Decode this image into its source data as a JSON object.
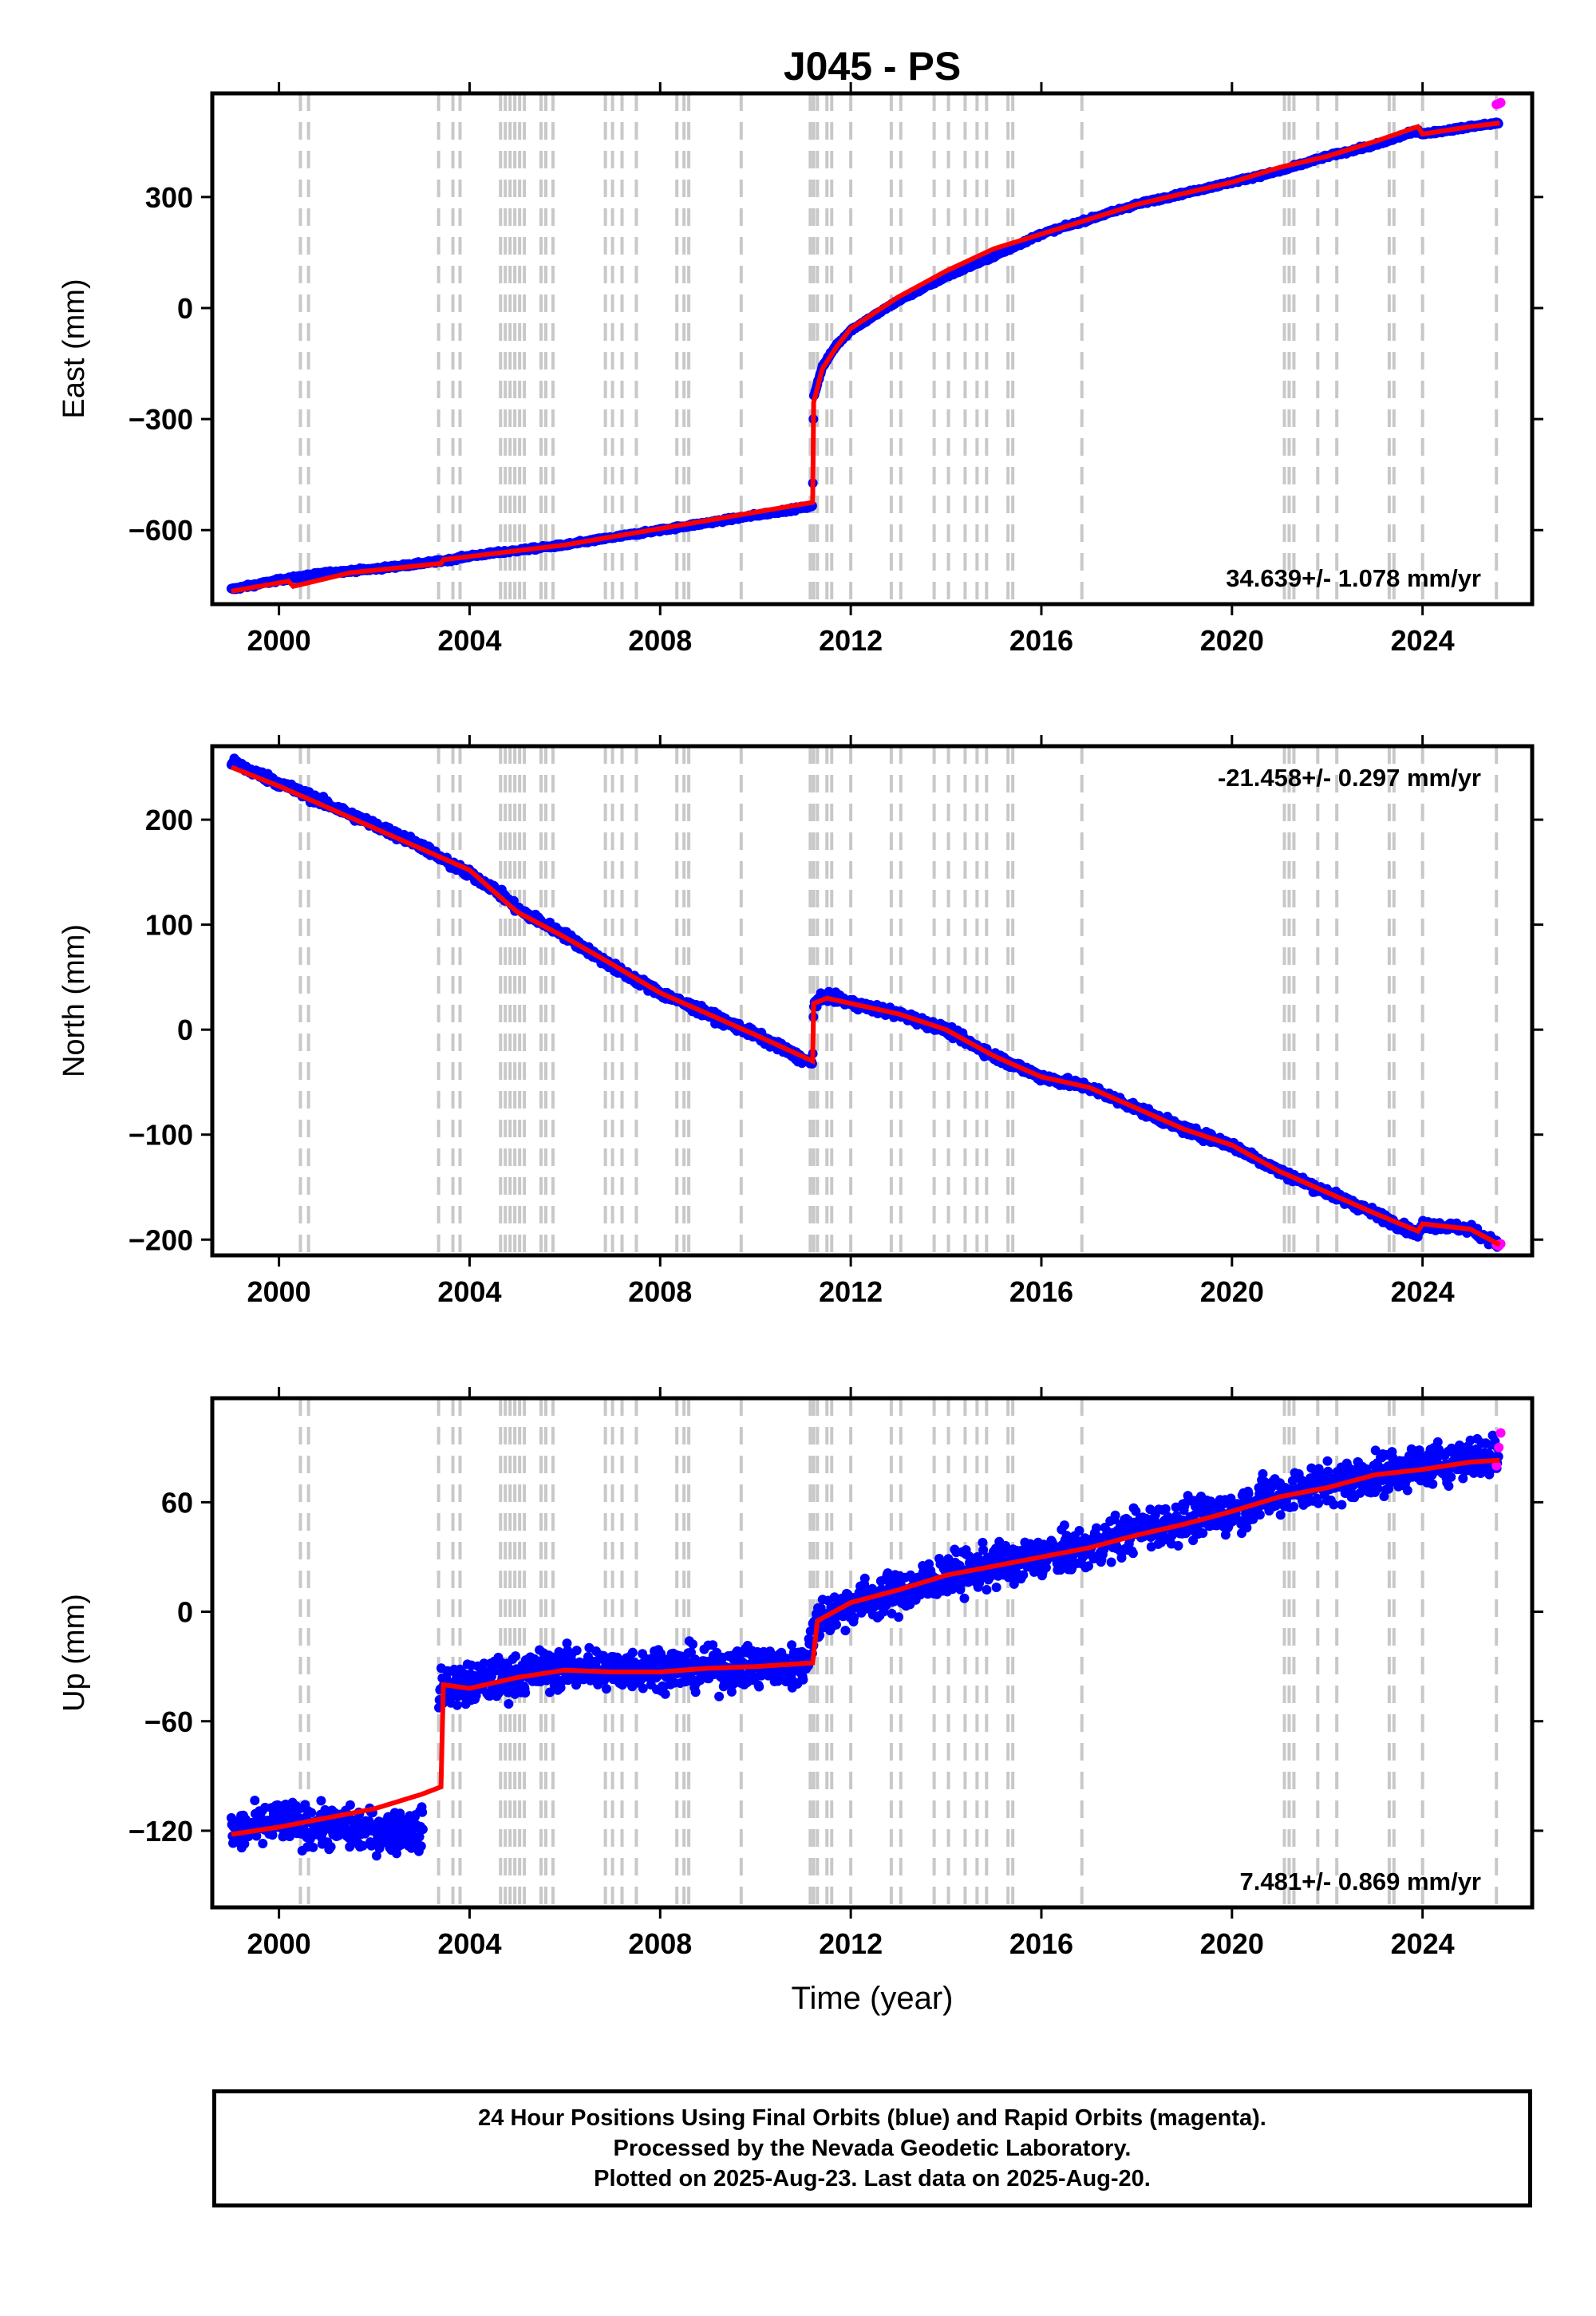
{
  "title": "J045 - PS",
  "xlabel": "Time (year)",
  "footer": {
    "line1": "24 Hour Positions Using Final Orbits (blue) and Rapid Orbits (magenta).",
    "line2": "Processed by the Nevada Geodetic Laboratory.",
    "line3": "Plotted on 2025-Aug-23. Last data on 2025-Aug-20."
  },
  "colors": {
    "final": "#0000ff",
    "rapid": "#ff00ff",
    "model": "#ff0000",
    "events": "#c8c8c8"
  },
  "chart_data": [
    {
      "type": "scatter",
      "component": "East",
      "ylabel": "East (mm)",
      "xlim": [
        1998.6,
        2026.3
      ],
      "ylim": [
        -800,
        580
      ],
      "xticks": [
        2000,
        2004,
        2008,
        2012,
        2016,
        2020,
        2024
      ],
      "yticks": [
        -600,
        -300,
        0,
        300
      ],
      "ytick_labels": [
        "−600",
        "−300",
        "0",
        "300"
      ],
      "rate_label": "34.639+/- 1.078 mm/yr",
      "rate_position": "bottom-right",
      "series": [
        {
          "name": "Final Orbits",
          "color": "#0000ff",
          "x": [
            1999.0,
            2000.0,
            2001.0,
            2002.0,
            2003.0,
            2003.5,
            2004.0,
            2005.0,
            2006.0,
            2007.0,
            2008.0,
            2009.0,
            2010.0,
            2011.2,
            2011.22,
            2011.4,
            2011.7,
            2012.0,
            2013.0,
            2014.0,
            2015.0,
            2016.0,
            2017.0,
            2018.0,
            2019.0,
            2020.0,
            2021.0,
            2022.0,
            2023.0,
            2023.9,
            2024.0,
            2025.0,
            2025.6
          ],
          "y": [
            -760,
            -735,
            -715,
            -705,
            -690,
            -682,
            -670,
            -655,
            -640,
            -620,
            -600,
            -580,
            -560,
            -535,
            -240,
            -160,
            -100,
            -60,
            20,
            85,
            140,
            200,
            240,
            280,
            310,
            340,
            370,
            410,
            440,
            480,
            470,
            490,
            500
          ]
        },
        {
          "name": "Rapid Orbits",
          "color": "#ff00ff",
          "x": [
            2025.55,
            2025.6,
            2025.64
          ],
          "y": [
            550,
            552,
            555
          ]
        }
      ],
      "model": {
        "color": "#ff0000",
        "x": [
          1999.0,
          2000.2,
          2000.3,
          2001.5,
          2003.4,
          2003.45,
          2006.0,
          2011.2,
          2011.22,
          2011.4,
          2011.7,
          2012.0,
          2013.0,
          2014.0,
          2015.0,
          2016.0,
          2017.0,
          2018.0,
          2019.0,
          2020.0,
          2021.0,
          2022.0,
          2023.0,
          2023.9,
          2024.0,
          2025.0,
          2025.62
        ],
        "y": [
          -765,
          -738,
          -752,
          -715,
          -690,
          -680,
          -640,
          -525,
          -255,
          -165,
          -105,
          -55,
          30,
          100,
          160,
          200,
          240,
          280,
          310,
          340,
          380,
          410,
          450,
          490,
          470,
          490,
          500
        ]
      },
      "events": [
        2000.45,
        2000.62,
        2003.35,
        2003.65,
        2003.8,
        2004.65,
        2004.75,
        2004.85,
        2004.95,
        2005.05,
        2005.15,
        2005.5,
        2005.6,
        2005.75,
        2006.85,
        2007.0,
        2007.2,
        2007.5,
        2008.35,
        2008.5,
        2008.6,
        2009.7,
        2011.15,
        2011.22,
        2011.3,
        2011.5,
        2011.6,
        2012.0,
        2012.85,
        2013.05,
        2013.75,
        2014.05,
        2014.4,
        2014.65,
        2014.85,
        2015.3,
        2015.4,
        2016.85,
        2021.1,
        2021.2,
        2021.3,
        2021.8,
        2022.2,
        2023.3,
        2023.4,
        2024.0,
        2025.55
      ]
    },
    {
      "type": "scatter",
      "component": "North",
      "ylabel": "North (mm)",
      "xlim": [
        1998.6,
        2026.3
      ],
      "ylim": [
        -215,
        270
      ],
      "xticks": [
        2000,
        2004,
        2008,
        2012,
        2016,
        2020,
        2024
      ],
      "yticks": [
        -200,
        -100,
        0,
        100,
        200
      ],
      "ytick_labels": [
        "−200",
        "−100",
        "0",
        "100",
        "200"
      ],
      "rate_label": "-21.458+/- 0.297 mm/yr",
      "rate_position": "top-right",
      "series": [
        {
          "name": "Final Orbits",
          "color": "#0000ff",
          "x": [
            1999.0,
            2000.0,
            2001.0,
            2002.0,
            2003.0,
            2003.5,
            2004.0,
            2004.5,
            2005.0,
            2006.0,
            2007.0,
            2008.0,
            2009.0,
            2010.0,
            2011.2,
            2011.22,
            2011.5,
            2012.0,
            2013.0,
            2014.0,
            2015.0,
            2016.0,
            2017.0,
            2018.0,
            2019.0,
            2020.0,
            2021.0,
            2022.0,
            2023.0,
            2023.9,
            2024.0,
            2025.0,
            2025.6
          ],
          "y": [
            255,
            235,
            215,
            195,
            175,
            160,
            148,
            135,
            115,
            90,
            60,
            35,
            15,
            -5,
            -33,
            25,
            32,
            25,
            15,
            0,
            -25,
            -45,
            -55,
            -75,
            -95,
            -110,
            -135,
            -155,
            -175,
            -195,
            -185,
            -190,
            -205
          ]
        },
        {
          "name": "Rapid Orbits",
          "color": "#ff00ff",
          "x": [
            2025.55,
            2025.6,
            2025.64
          ],
          "y": [
            -205,
            -206,
            -204
          ]
        }
      ],
      "model": {
        "color": "#ff0000",
        "x": [
          1999.0,
          2000.0,
          2001.0,
          2002.0,
          2003.0,
          2004.0,
          2005.0,
          2006.0,
          2007.0,
          2008.0,
          2009.0,
          2010.0,
          2011.2,
          2011.22,
          2011.5,
          2012.0,
          2013.0,
          2014.0,
          2015.0,
          2016.0,
          2017.0,
          2018.0,
          2019.0,
          2020.0,
          2021.0,
          2022.0,
          2023.0,
          2023.9,
          2024.0,
          2025.0,
          2025.62
        ],
        "y": [
          250,
          232,
          212,
          192,
          172,
          152,
          112,
          88,
          62,
          35,
          15,
          -5,
          -30,
          25,
          30,
          25,
          15,
          0,
          -25,
          -45,
          -55,
          -75,
          -95,
          -110,
          -135,
          -155,
          -175,
          -192,
          -185,
          -190,
          -205
        ]
      },
      "events": [
        2000.45,
        2000.62,
        2003.35,
        2003.65,
        2003.8,
        2004.65,
        2004.75,
        2004.85,
        2004.95,
        2005.05,
        2005.15,
        2005.5,
        2005.6,
        2005.75,
        2006.85,
        2007.0,
        2007.2,
        2007.5,
        2008.35,
        2008.5,
        2008.6,
        2009.7,
        2011.15,
        2011.22,
        2011.3,
        2011.5,
        2011.6,
        2012.0,
        2012.85,
        2013.05,
        2013.75,
        2014.05,
        2014.4,
        2014.65,
        2014.85,
        2015.3,
        2015.4,
        2016.85,
        2021.1,
        2021.2,
        2021.3,
        2021.8,
        2022.2,
        2023.3,
        2023.4,
        2024.0,
        2025.55
      ]
    },
    {
      "type": "scatter",
      "component": "Up",
      "ylabel": "Up (mm)",
      "xlim": [
        1998.6,
        2026.3
      ],
      "ylim": [
        -162,
        117
      ],
      "xticks": [
        2000,
        2004,
        2008,
        2012,
        2016,
        2020,
        2024
      ],
      "yticks": [
        -120,
        -60,
        0,
        60
      ],
      "ytick_labels": [
        "−120",
        "−60",
        "0",
        "60"
      ],
      "rate_label": "7.481+/- 0.869 mm/yr",
      "rate_position": "bottom-right",
      "series": [
        {
          "name": "Final Orbits",
          "color": "#0000ff",
          "x": [
            1999.0,
            2000.0,
            2001.0,
            2002.0,
            2003.0,
            2003.4,
            2004.0,
            2005.0,
            2006.0,
            2007.0,
            2008.0,
            2009.0,
            2010.0,
            2011.0,
            2011.3,
            2012.0,
            2013.0,
            2014.0,
            2015.0,
            2016.0,
            2017.0,
            2018.0,
            2019.0,
            2020.0,
            2021.0,
            2022.0,
            2023.0,
            2024.0,
            2025.0,
            2025.6
          ],
          "y": [
            -122,
            -115,
            -118,
            -120,
            -120,
            -40,
            -40,
            -35,
            -30,
            -32,
            -30,
            -32,
            -30,
            -30,
            -5,
            5,
            10,
            20,
            25,
            30,
            35,
            45,
            50,
            55,
            65,
            70,
            75,
            80,
            85,
            85
          ]
        },
        {
          "name": "Rapid Orbits",
          "color": "#ff00ff",
          "x": [
            2025.55,
            2025.6,
            2025.64
          ],
          "y": [
            80,
            90,
            98
          ]
        }
      ],
      "model": {
        "color": "#ff0000",
        "x": [
          1999.0,
          2000.0,
          2001.0,
          2002.0,
          2003.0,
          2003.4,
          2003.45,
          2004.0,
          2005.0,
          2006.0,
          2007.0,
          2008.0,
          2009.0,
          2010.0,
          2011.2,
          2011.3,
          2012.0,
          2013.0,
          2014.0,
          2015.0,
          2016.0,
          2017.0,
          2018.0,
          2019.0,
          2020.0,
          2021.0,
          2022.0,
          2023.0,
          2024.0,
          2025.0,
          2025.62
        ],
        "y": [
          -122,
          -118,
          -113,
          -108,
          -100,
          -96,
          -40,
          -42,
          -36,
          -32,
          -33,
          -33,
          -31,
          -30,
          -28,
          -5,
          5,
          12,
          20,
          25,
          30,
          35,
          42,
          48,
          55,
          63,
          68,
          75,
          78,
          82,
          83
        ]
      },
      "events": [
        2000.45,
        2000.62,
        2003.35,
        2003.65,
        2003.8,
        2004.65,
        2004.75,
        2004.85,
        2004.95,
        2005.05,
        2005.15,
        2005.5,
        2005.6,
        2005.75,
        2006.85,
        2007.0,
        2007.2,
        2007.5,
        2008.35,
        2008.5,
        2008.6,
        2009.7,
        2011.15,
        2011.22,
        2011.3,
        2011.5,
        2011.6,
        2012.0,
        2012.85,
        2013.05,
        2013.75,
        2014.05,
        2014.4,
        2014.65,
        2014.85,
        2015.3,
        2015.4,
        2016.85,
        2021.1,
        2021.2,
        2021.3,
        2021.8,
        2022.2,
        2023.3,
        2023.4,
        2024.0,
        2025.55
      ]
    }
  ]
}
